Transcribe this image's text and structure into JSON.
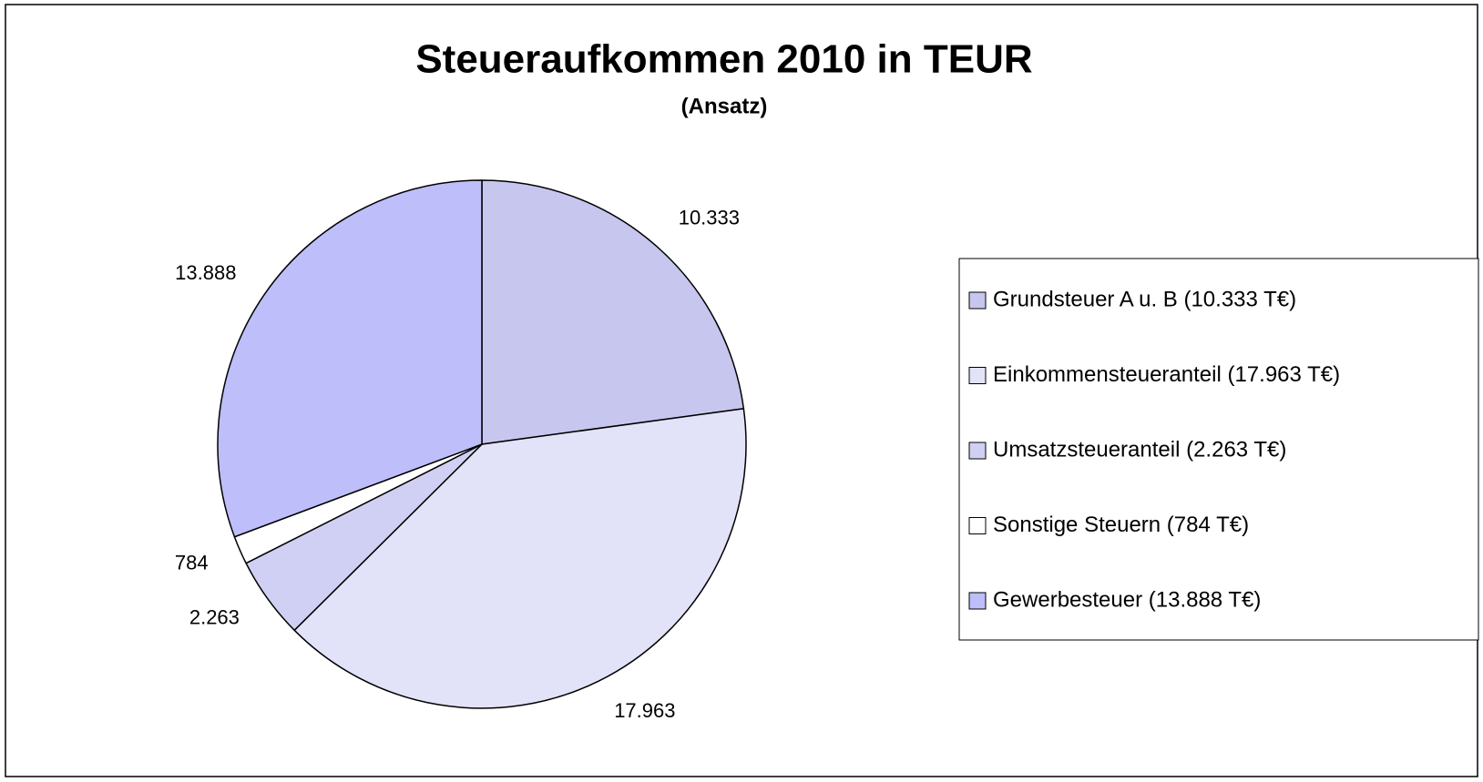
{
  "chart_data": {
    "type": "pie",
    "title": "Steueraufkommen 2010 in TEUR",
    "subtitle": "(Ansatz)",
    "categories": [
      "Grundsteuer A u. B (10.333 T€)",
      "Einkommensteueranteil (17.963 T€)",
      "Umsatzsteueranteil (2.263 T€)",
      "Sonstige Steuern (784 T€)",
      "Gewerbesteuer (13.888 T€)"
    ],
    "values": [
      10333,
      17963,
      2263,
      784,
      13888
    ],
    "value_labels": [
      "10.333",
      "17.963",
      "2.263",
      "784",
      "13.888"
    ],
    "colors": [
      "#c6c6ee",
      "#e2e2f8",
      "#d0d0f4",
      "#ffffff",
      "#bebefa"
    ],
    "legend": "right"
  }
}
